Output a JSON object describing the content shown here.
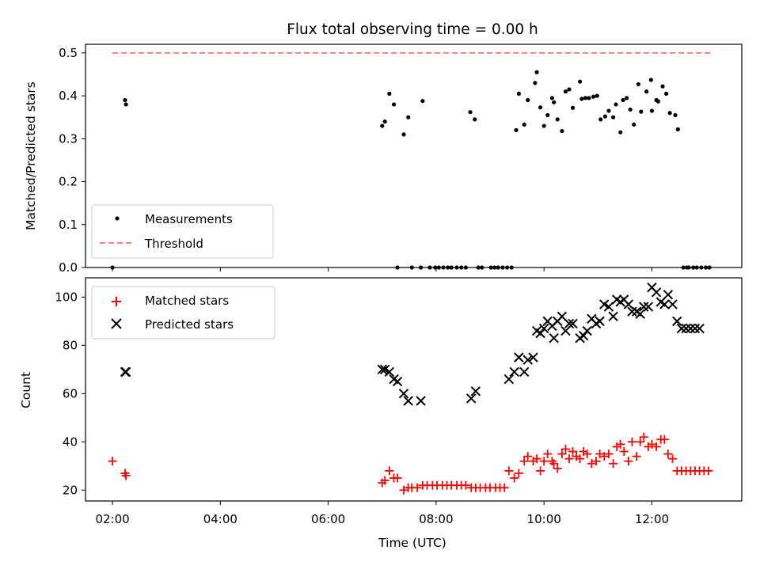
{
  "title": "Flux total observing time = 0.00 h",
  "xlabel": "Time (UTC)",
  "x_ticks": [
    "02:00",
    "04:00",
    "06:00",
    "08:00",
    "10:00",
    "12:00"
  ],
  "top_panel": {
    "ylabel": "Matched/Predicted stars",
    "y_ticks": [
      "0.0",
      "0.1",
      "0.2",
      "0.3",
      "0.4",
      "0.5"
    ],
    "legend": {
      "measurements": "Measurements",
      "threshold": "Threshold"
    }
  },
  "bottom_panel": {
    "ylabel": "Count",
    "y_ticks": [
      "20",
      "40",
      "60",
      "80",
      "100"
    ],
    "legend": {
      "matched": "Matched stars",
      "predicted": "Predicted stars"
    }
  },
  "chart_data": [
    {
      "type": "scatter",
      "title": "Flux total observing time = 0.00 h",
      "xlabel": "",
      "ylabel": "Matched/Predicted stars",
      "ylim": [
        0,
        0.52
      ],
      "xlim": [
        "01:30",
        "13:40"
      ],
      "threshold": 0.5,
      "series": [
        {
          "name": "Measurements",
          "x": [
            "02:00",
            "02:14",
            "02:15",
            "07:00",
            "07:03",
            "07:08",
            "07:13",
            "07:17",
            "07:24",
            "07:29",
            "07:33",
            "07:43",
            "07:45",
            "07:53",
            "07:59",
            "08:03",
            "08:08",
            "08:13",
            "08:17",
            "08:23",
            "08:28",
            "08:33",
            "08:38",
            "08:43",
            "08:47",
            "08:51",
            "09:01",
            "09:05",
            "09:09",
            "09:14",
            "09:19",
            "09:24",
            "09:29",
            "09:32",
            "09:38",
            "09:42",
            "09:50",
            "09:52",
            "09:56",
            "10:00",
            "10:04",
            "10:09",
            "10:11",
            "10:15",
            "10:20",
            "10:24",
            "10:28",
            "10:32",
            "10:40",
            "10:42",
            "10:46",
            "10:50",
            "10:55",
            "10:59",
            "11:03",
            "11:08",
            "11:12",
            "11:17",
            "11:20",
            "11:25",
            "11:28",
            "11:32",
            "11:36",
            "11:40",
            "11:45",
            "11:48",
            "11:54",
            "11:59",
            "12:00",
            "12:05",
            "12:07",
            "12:12",
            "12:16",
            "12:20",
            "12:26",
            "12:29",
            "12:35",
            "12:39",
            "12:41",
            "12:46",
            "12:50",
            "12:55",
            "13:00",
            "13:04"
          ],
          "y": [
            0.0,
            0.39,
            0.38,
            0.33,
            0.34,
            0.405,
            0.38,
            0.0,
            0.31,
            0.35,
            0.0,
            0.0,
            0.388,
            0.0,
            0.0,
            0.0,
            0.0,
            0.0,
            0.0,
            0.0,
            0.0,
            0.0,
            0.362,
            0.345,
            0.0,
            0.0,
            0.0,
            0.0,
            0.0,
            0.0,
            0.0,
            0.0,
            0.32,
            0.405,
            0.333,
            0.39,
            0.43,
            0.455,
            0.373,
            0.33,
            0.355,
            0.395,
            0.385,
            0.345,
            0.318,
            0.41,
            0.415,
            0.372,
            0.433,
            0.393,
            0.395,
            0.395,
            0.398,
            0.4,
            0.345,
            0.352,
            0.365,
            0.35,
            0.38,
            0.315,
            0.39,
            0.395,
            0.368,
            0.333,
            0.427,
            0.363,
            0.41,
            0.437,
            0.365,
            0.39,
            0.387,
            0.422,
            0.405,
            0.36,
            0.355,
            0.322,
            0.0,
            0.0,
            0.0,
            0.0,
            0.0,
            0.0,
            0.0,
            0.0
          ]
        },
        {
          "name": "Threshold",
          "x": [
            "02:00",
            "13:05"
          ],
          "y": [
            0.5,
            0.5
          ]
        }
      ]
    },
    {
      "type": "scatter",
      "xlabel": "Time (UTC)",
      "ylabel": "Count",
      "ylim": [
        15.5,
        108
      ],
      "xlim": [
        "01:30",
        "13:40"
      ],
      "series": [
        {
          "name": "Matched stars",
          "x": [
            "02:00",
            "02:14",
            "02:15",
            "07:00",
            "07:03",
            "07:08",
            "07:13",
            "07:17",
            "07:24",
            "07:29",
            "07:33",
            "07:39",
            "07:45",
            "07:50",
            "07:56",
            "08:01",
            "08:07",
            "08:12",
            "08:17",
            "08:23",
            "08:28",
            "08:33",
            "08:39",
            "08:44",
            "08:49",
            "08:55",
            "09:00",
            "09:06",
            "09:11",
            "09:16",
            "09:21",
            "09:27",
            "09:32",
            "09:38",
            "09:42",
            "09:48",
            "09:52",
            "09:56",
            "10:00",
            "10:04",
            "10:09",
            "10:11",
            "10:15",
            "10:20",
            "10:24",
            "10:28",
            "10:32",
            "10:36",
            "10:40",
            "10:44",
            "10:48",
            "10:53",
            "10:58",
            "11:02",
            "11:07",
            "11:12",
            "11:17",
            "11:21",
            "11:25",
            "11:29",
            "11:34",
            "11:38",
            "11:43",
            "11:47",
            "11:51",
            "11:56",
            "12:00",
            "12:05",
            "12:10",
            "12:14",
            "12:18",
            "12:23",
            "12:28",
            "12:33",
            "12:38",
            "12:43",
            "12:48",
            "12:53",
            "12:58",
            "13:03"
          ],
          "y": [
            32,
            27,
            26,
            23,
            24,
            28,
            25,
            25,
            20,
            21,
            21,
            21,
            22,
            22,
            22,
            22,
            22,
            22,
            22,
            22,
            22,
            22,
            21,
            21,
            21,
            21,
            21,
            21,
            21,
            21,
            28,
            25,
            27,
            32,
            34,
            32,
            33,
            28,
            32,
            35,
            32,
            31,
            29,
            35,
            37,
            33,
            36,
            34,
            33,
            36,
            35,
            31,
            32,
            35,
            34,
            35,
            31,
            38,
            39,
            36,
            32,
            40,
            34,
            40,
            42,
            38,
            39,
            38,
            41,
            41,
            35,
            33,
            28,
            28,
            28,
            28,
            28,
            28,
            28,
            28
          ],
          "color": "#ff0000"
        },
        {
          "name": "Predicted stars",
          "x": [
            "02:14",
            "02:15",
            "07:00",
            "07:03",
            "07:08",
            "07:13",
            "07:17",
            "07:24",
            "07:29",
            "07:43",
            "08:39",
            "08:44",
            "09:21",
            "09:27",
            "09:32",
            "09:38",
            "09:42",
            "09:48",
            "09:52",
            "09:56",
            "10:00",
            "10:04",
            "10:09",
            "10:11",
            "10:15",
            "10:20",
            "10:24",
            "10:28",
            "10:32",
            "10:40",
            "10:44",
            "10:48",
            "10:53",
            "10:58",
            "11:02",
            "11:07",
            "11:12",
            "11:17",
            "11:21",
            "11:25",
            "11:29",
            "11:34",
            "11:38",
            "11:43",
            "11:47",
            "11:51",
            "11:56",
            "12:00",
            "12:05",
            "12:10",
            "12:14",
            "12:18",
            "12:23",
            "12:28",
            "12:33",
            "12:38",
            "12:43",
            "12:48",
            "12:53"
          ],
          "y": [
            69,
            69,
            70,
            70,
            69,
            66,
            65,
            60,
            57,
            57,
            58,
            61,
            66,
            69,
            75,
            69,
            74,
            75,
            86,
            85,
            87,
            90,
            88,
            83,
            90,
            92,
            86,
            89,
            89,
            83,
            84,
            86,
            91,
            89,
            90,
            97,
            96,
            92,
            99,
            98,
            99,
            97,
            94,
            94,
            93,
            96,
            96,
            104,
            102,
            98,
            97,
            101,
            97,
            90,
            87,
            87,
            87,
            87,
            87
          ],
          "color": "#000000"
        }
      ]
    }
  ]
}
